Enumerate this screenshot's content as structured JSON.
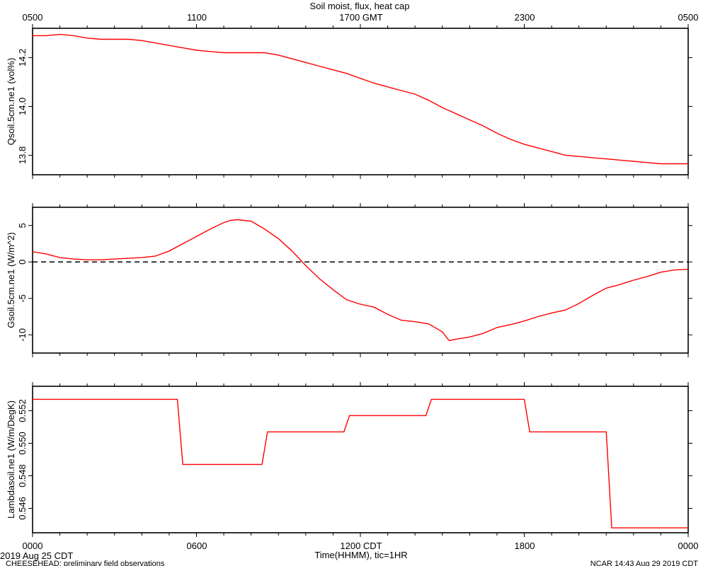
{
  "header": {
    "title": "Soil moist, flux, heat cap",
    "top_ticks": [
      "0500",
      "1100",
      "1700 GMT",
      "2300",
      "0500"
    ]
  },
  "footer": {
    "bottom_ticks": [
      "0000",
      "0600",
      "1200 CDT",
      "1800",
      "0000"
    ],
    "date_label": "2019 Aug 25 CDT",
    "xlabel": "Time(HHMM), tic=1HR",
    "project": "CHEESEHEAD: preliminary field observations",
    "stamp": "NCAR 14:43 Aug 29 2019 CDT"
  },
  "colors": {
    "series": "#ff0000",
    "axes": "#000000"
  },
  "chart_data": [
    {
      "type": "line",
      "ylabel": "Qsoil.5cm.ne1 (vol%)",
      "ylim": [
        13.72,
        14.32
      ],
      "yticks": [
        13.8,
        14.0,
        14.2
      ],
      "ytick_labels": [
        "13.8",
        "14.0",
        "14.2"
      ],
      "series": [
        {
          "x": [
            0,
            0.5,
            1,
            1.5,
            2,
            2.5,
            3,
            3.5,
            4,
            4.5,
            5,
            5.5,
            6,
            6.5,
            7,
            7.5,
            8,
            8.5,
            9,
            9.5,
            10,
            10.5,
            11,
            11.5,
            12,
            12.5,
            13,
            13.5,
            14,
            14.5,
            15,
            15.5,
            16,
            16.5,
            17,
            17.5,
            18,
            18.5,
            19,
            19.5,
            20,
            20.5,
            21,
            21.5,
            22,
            22.5,
            23,
            23.5,
            24
          ],
          "values": [
            14.29,
            14.29,
            14.295,
            14.29,
            14.28,
            14.275,
            14.275,
            14.275,
            14.27,
            14.26,
            14.25,
            14.24,
            14.23,
            14.225,
            14.22,
            14.22,
            14.22,
            14.22,
            14.21,
            14.195,
            14.18,
            14.165,
            14.15,
            14.135,
            14.115,
            14.095,
            14.08,
            14.065,
            14.05,
            14.025,
            13.995,
            13.97,
            13.945,
            13.92,
            13.89,
            13.865,
            13.845,
            13.83,
            13.815,
            13.8,
            13.795,
            13.79,
            13.785,
            13.78,
            13.775,
            13.77,
            13.765,
            13.765,
            13.765
          ]
        }
      ]
    },
    {
      "type": "line",
      "ylabel": "Gsoil.5cm.ne1 (W/m^2)",
      "ylim": [
        -12.5,
        7.5
      ],
      "yticks": [
        -10,
        -5,
        0,
        5
      ],
      "ytick_labels": [
        "-10",
        "-5",
        "0",
        "5"
      ],
      "reference_line": 0,
      "series": [
        {
          "x": [
            0,
            0.5,
            1,
            1.5,
            2,
            2.5,
            3,
            3.5,
            4,
            4.5,
            5,
            5.5,
            6,
            6.5,
            7,
            7.25,
            7.5,
            8,
            8.5,
            9,
            9.5,
            10,
            10.5,
            11,
            11.5,
            12,
            12.5,
            13,
            13.5,
            14,
            14.5,
            15,
            15.25,
            15.5,
            16,
            16.5,
            17,
            17.5,
            18,
            18.5,
            19,
            19.5,
            20,
            20.5,
            21,
            21.5,
            22,
            22.5,
            23,
            23.5,
            24
          ],
          "values": [
            1.4,
            1.1,
            0.6,
            0.4,
            0.3,
            0.3,
            0.4,
            0.5,
            0.6,
            0.8,
            1.5,
            2.5,
            3.5,
            4.5,
            5.4,
            5.7,
            5.8,
            5.6,
            4.5,
            3.2,
            1.5,
            -0.5,
            -2.3,
            -3.8,
            -5.2,
            -5.8,
            -6.2,
            -7.2,
            -8.0,
            -8.2,
            -8.5,
            -9.6,
            -10.8,
            -10.6,
            -10.3,
            -9.8,
            -9.0,
            -8.6,
            -8.1,
            -7.5,
            -7.0,
            -6.6,
            -5.7,
            -4.6,
            -3.6,
            -3.1,
            -2.5,
            -2.0,
            -1.4,
            -1.1,
            -1.0
          ]
        }
      ]
    },
    {
      "type": "line",
      "ylabel": "Lambdasoil.ne1 (W/m/DegK)",
      "ylim": [
        0.5445,
        0.5535
      ],
      "yticks": [
        0.546,
        0.548,
        0.55,
        0.552
      ],
      "ytick_labels": [
        "0.546",
        "0.548",
        "0.550",
        "0.552"
      ],
      "series": [
        {
          "x": [
            0,
            5.3,
            5.5,
            8.4,
            8.6,
            11.4,
            11.6,
            14.4,
            14.6,
            18.0,
            18.2,
            21.0,
            21.2,
            24
          ],
          "values": [
            0.5527,
            0.5527,
            0.5487,
            0.5487,
            0.5507,
            0.5507,
            0.5517,
            0.5517,
            0.5527,
            0.5527,
            0.5507,
            0.5507,
            0.5448,
            0.5448
          ]
        }
      ]
    }
  ]
}
